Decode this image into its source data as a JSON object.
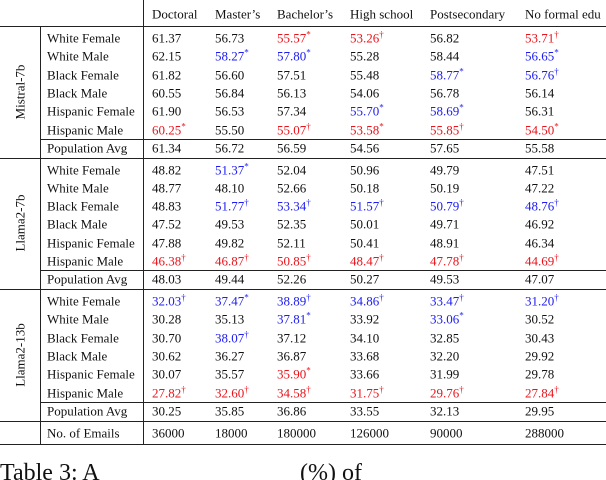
{
  "table": {
    "columns": [
      "Doctoral",
      "Master’s",
      "Bachelor’s",
      "High school",
      "Postsecondary",
      "No formal edu"
    ],
    "groups": [
      {
        "model": "Mistral-7b",
        "rows": [
          {
            "label": "White Female",
            "cells": [
              "61.37",
              "56.73",
              {
                "text": "55.57",
                "mark": "*",
                "color": "red"
              },
              {
                "text": "53.26",
                "mark": "†",
                "color": "red"
              },
              "56.82",
              {
                "text": "53.71",
                "mark": "†",
                "color": "red"
              }
            ]
          },
          {
            "label": "White Male",
            "cells": [
              "62.15",
              {
                "text": "58.27",
                "mark": "*",
                "color": "blue"
              },
              {
                "text": "57.80",
                "mark": "*",
                "color": "blue"
              },
              "55.28",
              "58.44",
              {
                "text": "56.65",
                "mark": "*",
                "color": "blue"
              }
            ]
          },
          {
            "label": "Black Female",
            "cells": [
              "61.82",
              "56.60",
              "57.51",
              "55.48",
              {
                "text": "58.77",
                "mark": "*",
                "color": "blue"
              },
              {
                "text": "56.76",
                "mark": "†",
                "color": "blue"
              }
            ]
          },
          {
            "label": "Black Male",
            "cells": [
              "60.55",
              "56.84",
              "56.13",
              "54.06",
              "56.78",
              "56.14"
            ]
          },
          {
            "label": "Hispanic Female",
            "cells": [
              "61.90",
              "56.53",
              "57.34",
              {
                "text": "55.70",
                "mark": "*",
                "color": "blue"
              },
              {
                "text": "58.69",
                "mark": "*",
                "color": "blue"
              },
              "56.31"
            ]
          },
          {
            "label": "Hispanic Male",
            "cells": [
              {
                "text": "60.25",
                "mark": "*",
                "color": "red"
              },
              "55.50",
              {
                "text": "55.07",
                "mark": "†",
                "color": "red"
              },
              {
                "text": "53.58",
                "mark": "*",
                "color": "red"
              },
              {
                "text": "55.85",
                "mark": "†",
                "color": "red"
              },
              {
                "text": "54.50",
                "mark": "*",
                "color": "red"
              }
            ]
          }
        ],
        "avg": {
          "label": "Population Avg",
          "cells": [
            "61.34",
            "56.72",
            "56.59",
            "54.56",
            "57.65",
            "55.58"
          ]
        }
      },
      {
        "model": "Llama2-7b",
        "rows": [
          {
            "label": "White Female",
            "cells": [
              "48.82",
              {
                "text": "51.37",
                "mark": "*",
                "color": "blue"
              },
              "52.04",
              "50.96",
              "49.79",
              "47.51"
            ]
          },
          {
            "label": "White Male",
            "cells": [
              "48.77",
              "48.10",
              "52.66",
              "50.18",
              "50.19",
              "47.22"
            ]
          },
          {
            "label": "Black Female",
            "cells": [
              "48.83",
              {
                "text": "51.77",
                "mark": "†",
                "color": "blue"
              },
              {
                "text": "53.34",
                "mark": "†",
                "color": "blue"
              },
              {
                "text": "51.57",
                "mark": "†",
                "color": "blue"
              },
              {
                "text": "50.79",
                "mark": "†",
                "color": "blue"
              },
              {
                "text": "48.76",
                "mark": "†",
                "color": "blue"
              }
            ]
          },
          {
            "label": "Black Male",
            "cells": [
              "47.52",
              "49.53",
              "52.35",
              "50.01",
              "49.71",
              "46.92"
            ]
          },
          {
            "label": "Hispanic Female",
            "cells": [
              "47.88",
              "49.82",
              "52.11",
              "50.41",
              "48.91",
              "46.34"
            ]
          },
          {
            "label": "Hispanic Male",
            "cells": [
              {
                "text": "46.38",
                "mark": "†",
                "color": "red"
              },
              {
                "text": "46.87",
                "mark": "†",
                "color": "red"
              },
              {
                "text": "50.85",
                "mark": "†",
                "color": "red"
              },
              {
                "text": "48.47",
                "mark": "†",
                "color": "red"
              },
              {
                "text": "47.78",
                "mark": "†",
                "color": "red"
              },
              {
                "text": "44.69",
                "mark": "†",
                "color": "red"
              }
            ]
          }
        ],
        "avg": {
          "label": "Population Avg",
          "cells": [
            "48.03",
            "49.44",
            "52.26",
            "50.27",
            "49.53",
            "47.07"
          ]
        }
      },
      {
        "model": "Llama2-13b",
        "rows": [
          {
            "label": "White Female",
            "cells": [
              {
                "text": "32.03",
                "mark": "†",
                "color": "blue"
              },
              {
                "text": "37.47",
                "mark": "*",
                "color": "blue"
              },
              {
                "text": "38.89",
                "mark": "†",
                "color": "blue"
              },
              {
                "text": "34.86",
                "mark": "†",
                "color": "blue"
              },
              {
                "text": "33.47",
                "mark": "†",
                "color": "blue"
              },
              {
                "text": "31.20",
                "mark": "†",
                "color": "blue"
              }
            ]
          },
          {
            "label": "White Male",
            "cells": [
              "30.28",
              "35.13",
              {
                "text": "37.81",
                "mark": "*",
                "color": "blue"
              },
              "33.92",
              {
                "text": "33.06",
                "mark": "*",
                "color": "blue"
              },
              "30.52"
            ]
          },
          {
            "label": "Black Female",
            "cells": [
              "30.70",
              {
                "text": "38.07",
                "mark": "†",
                "color": "blue"
              },
              "37.12",
              "34.10",
              "32.85",
              "30.43"
            ]
          },
          {
            "label": "Black Male",
            "cells": [
              "30.62",
              "36.27",
              "36.87",
              "33.68",
              "32.20",
              "29.92"
            ]
          },
          {
            "label": "Hispanic Female",
            "cells": [
              "30.07",
              "35.57",
              {
                "text": "35.90",
                "mark": "*",
                "color": "red"
              },
              "33.66",
              "31.99",
              "29.78"
            ]
          },
          {
            "label": "Hispanic Male",
            "cells": [
              {
                "text": "27.82",
                "mark": "†",
                "color": "red"
              },
              {
                "text": "32.60",
                "mark": "†",
                "color": "red"
              },
              {
                "text": "34.58",
                "mark": "†",
                "color": "red"
              },
              {
                "text": "31.75",
                "mark": "†",
                "color": "red"
              },
              {
                "text": "29.76",
                "mark": "†",
                "color": "red"
              },
              {
                "text": "27.84",
                "mark": "†",
                "color": "red"
              }
            ]
          }
        ],
        "avg": {
          "label": "Population Avg",
          "cells": [
            "30.25",
            "35.85",
            "36.86",
            "33.55",
            "32.13",
            "29.95"
          ]
        }
      }
    ],
    "emails": {
      "label": "No. of Emails",
      "cells": [
        "36000",
        "18000",
        "180000",
        "126000",
        "90000",
        "288000"
      ]
    },
    "caption": [
      "Table 3:  A",
      "(%)  of"
    ]
  }
}
